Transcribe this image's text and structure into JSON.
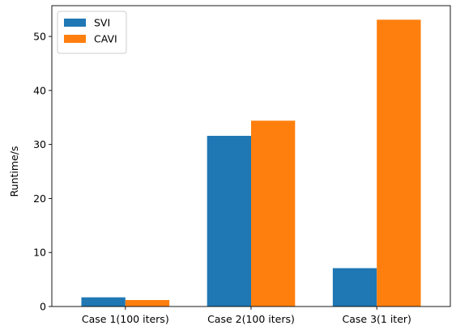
{
  "chart_data": {
    "type": "bar",
    "title": "",
    "xlabel": "",
    "ylabel": "Runtime/s",
    "categories": [
      "Case 1(100 iters)",
      "Case 2(100 iters)",
      "Case 3(1 iter)"
    ],
    "series": [
      {
        "name": "SVI",
        "values": [
          1.7,
          31.6,
          7.1
        ],
        "color": "#1f77b4"
      },
      {
        "name": "CAVI",
        "values": [
          1.2,
          34.4,
          53.1
        ],
        "color": "#ff7f0e"
      }
    ],
    "ylim": [
      0,
      55.7
    ],
    "yticks": [
      0,
      10,
      20,
      30,
      40,
      50
    ],
    "grid": false,
    "legend_position": "top-left"
  }
}
